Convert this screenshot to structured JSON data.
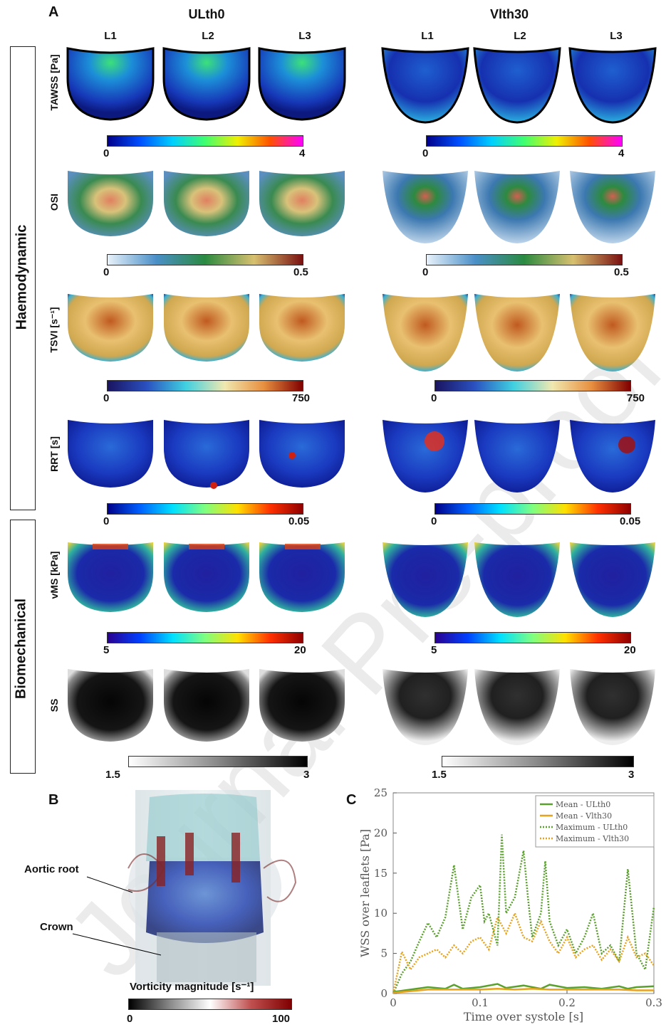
{
  "panel_a": {
    "letter": "A",
    "groups": [
      {
        "title": "ULth0",
        "columns": [
          "L1",
          "L2",
          "L3"
        ]
      },
      {
        "title": "Vlth30",
        "columns": [
          "L1",
          "L2",
          "L3"
        ]
      }
    ],
    "sections": [
      "Haemodynamic",
      "Biomechanical"
    ],
    "rows": [
      {
        "label": "TAWSS [Pa]",
        "min": "0",
        "max": "4",
        "cmap": "jet-magenta"
      },
      {
        "label": "OSI",
        "min": "0",
        "max": "0.5",
        "cmap": "blue-green-red"
      },
      {
        "label": "TSVI [s⁻¹]",
        "min": "0",
        "max": "750",
        "cmap": "navy-cyan-orange"
      },
      {
        "label": "RRT [s]",
        "min": "0",
        "max": "0.05",
        "cmap": "jet"
      },
      {
        "label": "vMS [kPa]",
        "min": "5",
        "max": "20",
        "cmap": "jet"
      },
      {
        "label": "SS",
        "min": "1.5",
        "max": "3",
        "cmap": "gray"
      }
    ]
  },
  "panel_b": {
    "letter": "B",
    "annotations": [
      "Aortic root",
      "Crown"
    ],
    "colorbar_label": "Vorticity magnitude [s⁻¹]",
    "colorbar_min": "0",
    "colorbar_max": "100"
  },
  "watermark": "Journal Pre-proof",
  "panel_c": {
    "letter": "C",
    "chart_data": {
      "type": "line",
      "xlabel": "Time over systole [s]",
      "ylabel": "WSS over leaflets [Pa]",
      "xlim": [
        0,
        0.3
      ],
      "ylim": [
        0,
        25
      ],
      "xticks": [
        "0",
        "0.1",
        "0.2",
        "0.3"
      ],
      "yticks": [
        "0",
        "5",
        "10",
        "15",
        "20",
        "25"
      ],
      "grid": false,
      "legend": "top-right",
      "series": [
        {
          "name": "Mean - ULth0",
          "color": "#5aa02c",
          "style": "solid",
          "x": [
            0,
            0.02,
            0.04,
            0.06,
            0.07,
            0.08,
            0.1,
            0.12,
            0.13,
            0.15,
            0.17,
            0.18,
            0.2,
            0.22,
            0.24,
            0.26,
            0.27,
            0.28,
            0.3
          ],
          "y": [
            0.2,
            0.5,
            0.8,
            0.6,
            1.1,
            0.6,
            0.8,
            1.2,
            0.7,
            1.0,
            0.6,
            1.1,
            0.7,
            0.8,
            0.6,
            0.9,
            0.6,
            0.8,
            0.9
          ]
        },
        {
          "name": "Mean - Vlth30",
          "color": "#e8a21c",
          "style": "solid",
          "x": [
            0,
            0.02,
            0.04,
            0.06,
            0.08,
            0.1,
            0.12,
            0.14,
            0.16,
            0.18,
            0.2,
            0.22,
            0.24,
            0.26,
            0.28,
            0.3
          ],
          "y": [
            0.1,
            0.3,
            0.5,
            0.5,
            0.5,
            0.5,
            0.6,
            0.5,
            0.6,
            0.5,
            0.5,
            0.5,
            0.5,
            0.5,
            0.4,
            0.4
          ]
        },
        {
          "name": "Maximum - ULth0",
          "color": "#5aa02c",
          "style": "dotted",
          "x": [
            0,
            0.01,
            0.02,
            0.03,
            0.04,
            0.05,
            0.06,
            0.07,
            0.08,
            0.09,
            0.1,
            0.105,
            0.11,
            0.12,
            0.125,
            0.13,
            0.14,
            0.15,
            0.155,
            0.16,
            0.17,
            0.175,
            0.18,
            0.19,
            0.2,
            0.21,
            0.22,
            0.23,
            0.24,
            0.25,
            0.26,
            0.27,
            0.28,
            0.29,
            0.3
          ],
          "y": [
            0,
            2.5,
            4,
            6.5,
            8.8,
            7,
            9.5,
            16,
            8,
            12,
            13.5,
            9,
            10,
            6,
            19.8,
            10,
            12,
            17.8,
            12,
            7,
            10,
            16.5,
            9,
            6,
            8,
            5,
            7,
            10,
            5,
            6,
            4,
            15.5,
            5,
            3,
            10.8
          ]
        },
        {
          "name": "Maximum - Vlth30",
          "color": "#e8a21c",
          "style": "dotted",
          "x": [
            0,
            0.01,
            0.02,
            0.03,
            0.04,
            0.05,
            0.06,
            0.07,
            0.08,
            0.09,
            0.1,
            0.11,
            0.12,
            0.13,
            0.14,
            0.15,
            0.16,
            0.17,
            0.18,
            0.19,
            0.2,
            0.21,
            0.22,
            0.23,
            0.24,
            0.25,
            0.26,
            0.27,
            0.28,
            0.29,
            0.3
          ],
          "y": [
            0,
            5.2,
            3,
            4.5,
            5,
            5.5,
            4.5,
            6,
            5,
            6.5,
            7,
            5.5,
            9.5,
            7.5,
            10,
            7,
            6.5,
            9,
            6.5,
            5,
            7,
            4.5,
            5.5,
            6,
            4.2,
            5.5,
            4,
            7,
            4.5,
            5,
            3.5
          ]
        }
      ]
    }
  }
}
